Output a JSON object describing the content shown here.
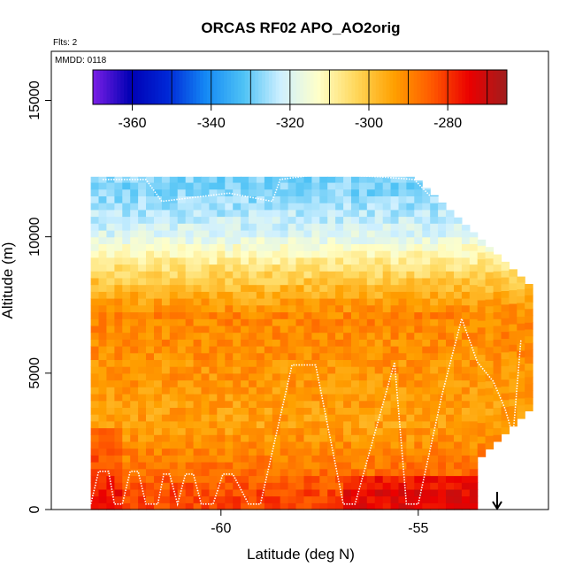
{
  "chart_data": {
    "type": "heatmap",
    "title": "ORCAS RF02 APO_AO2orig",
    "note_flights": "Flts: 2",
    "note_date": "MMDD: 0118",
    "xlabel": "Latitude (deg N)",
    "ylabel": "Altitude (m)",
    "xlim": [
      -64.3,
      -51.7
    ],
    "ylim": [
      0,
      16800
    ],
    "x_ticks": [
      -60,
      -55
    ],
    "x_tick_labels": [
      "-60",
      "-55"
    ],
    "y_ticks": [
      0,
      5000,
      10000,
      15000
    ],
    "y_tick_labels": [
      "0",
      "5000",
      "10000",
      "15000"
    ],
    "colorbar": {
      "range": [
        -370,
        -265
      ],
      "ticks": [
        -360,
        -340,
        -320,
        -300,
        -280
      ],
      "tick_labels": [
        "-360",
        "-340",
        "-320",
        "-300",
        "-280"
      ],
      "colors": [
        "#7b1fe6",
        "#0000b4",
        "#0028d7",
        "#1489f5",
        "#4ec2f5",
        "#cff0ff",
        "#ffffc8",
        "#ffd75a",
        "#ffa000",
        "#ff5a00",
        "#eb0000",
        "#a01e1e"
      ]
    },
    "field_lat_range": [
      -63.3,
      -52.1
    ],
    "field_alt_range": [
      0,
      12200
    ],
    "field_levels": [
      {
        "alt": 11500,
        "apo": -328
      },
      {
        "alt": 10000,
        "apo": -320
      },
      {
        "alt": 9000,
        "apo": -308
      },
      {
        "alt": 8000,
        "apo": -298
      },
      {
        "alt": 7000,
        "apo": -290
      },
      {
        "alt": 5000,
        "apo": -292
      },
      {
        "alt": 3000,
        "apo": -294
      },
      {
        "alt": 1500,
        "apo": -288
      },
      {
        "alt": 500,
        "apo": -282
      }
    ],
    "flight_track": [
      [
        -63.3,
        200
      ],
      [
        -63.1,
        1400
      ],
      [
        -62.85,
        1400
      ],
      [
        -62.7,
        200
      ],
      [
        -62.5,
        200
      ],
      [
        -62.3,
        1400
      ],
      [
        -62.1,
        1400
      ],
      [
        -61.9,
        200
      ],
      [
        -61.6,
        200
      ],
      [
        -61.45,
        1300
      ],
      [
        -61.3,
        1300
      ],
      [
        -61.1,
        200
      ],
      [
        -60.9,
        1300
      ],
      [
        -60.7,
        1300
      ],
      [
        -60.5,
        200
      ],
      [
        -60.2,
        200
      ],
      [
        -59.95,
        1300
      ],
      [
        -59.7,
        1300
      ],
      [
        -59.3,
        200
      ],
      [
        -59.0,
        200
      ],
      [
        -58.2,
        5300
      ],
      [
        -57.6,
        5300
      ],
      [
        -56.9,
        200
      ],
      [
        -56.6,
        200
      ],
      [
        -55.6,
        5400
      ],
      [
        -55.3,
        200
      ],
      [
        -55.0,
        200
      ],
      [
        -54.4,
        4200
      ],
      [
        -53.9,
        7000
      ],
      [
        -53.5,
        5400
      ],
      [
        -53.1,
        4700
      ],
      [
        -52.8,
        3700
      ],
      [
        -52.6,
        2700
      ],
      [
        -52.4,
        6200
      ]
    ],
    "flight_track_upper": [
      [
        -63.0,
        12100
      ],
      [
        -61.9,
        12100
      ],
      [
        -61.5,
        11300
      ],
      [
        -59.8,
        11600
      ],
      [
        -58.7,
        11300
      ],
      [
        -58.5,
        12100
      ],
      [
        -57.5,
        12300
      ],
      [
        -56.0,
        12200
      ],
      [
        -55.1,
        12100
      ],
      [
        -54.7,
        11500
      ]
    ],
    "arrow_lat": -53.0
  }
}
